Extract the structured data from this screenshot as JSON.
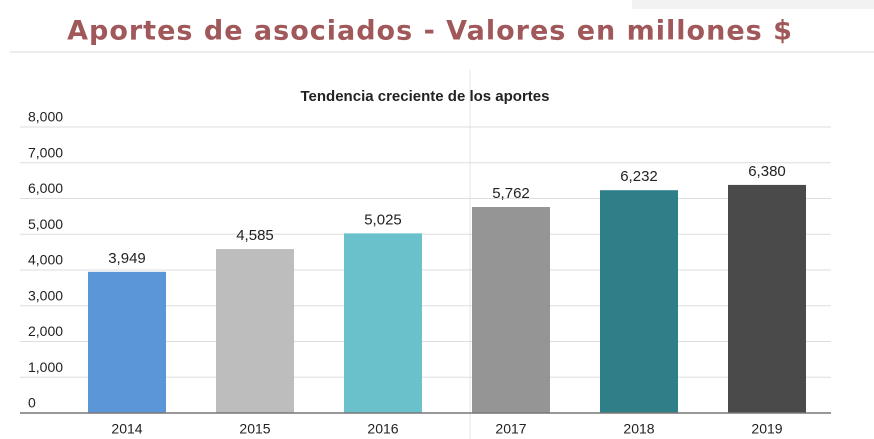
{
  "page_title": "Aportes de asociados - Valores en millones  $",
  "chart_data": {
    "type": "bar",
    "title": "Tendencia creciente de los aportes",
    "categories": [
      "2014",
      "2015",
      "2016",
      "2017",
      "2018",
      "2019"
    ],
    "values": [
      3949,
      4585,
      5025,
      5762,
      6232,
      6380
    ],
    "value_labels": [
      "3,949",
      "4,585",
      "5,025",
      "5,762",
      "6,232",
      "6,380"
    ],
    "colors": [
      "#5b96d8",
      "#bdbdbd",
      "#6ac1cb",
      "#959595",
      "#2e7f87",
      "#4a4a4a"
    ],
    "ylim": [
      0,
      8000
    ],
    "yticks": [
      0,
      {
        "value": 1000,
        "label": "1,000"
      },
      {
        "value": 2000,
        "label": "2,000"
      },
      {
        "value": 3000,
        "label": "3,000"
      },
      {
        "value": 4000,
        "label": "4,000"
      },
      {
        "value": 5000,
        "label": "5,000"
      },
      {
        "value": 6000,
        "label": "6,000"
      },
      {
        "value": 7000,
        "label": "7,000"
      },
      {
        "value": 8000,
        "label": "8,000"
      }
    ],
    "grid": true
  }
}
